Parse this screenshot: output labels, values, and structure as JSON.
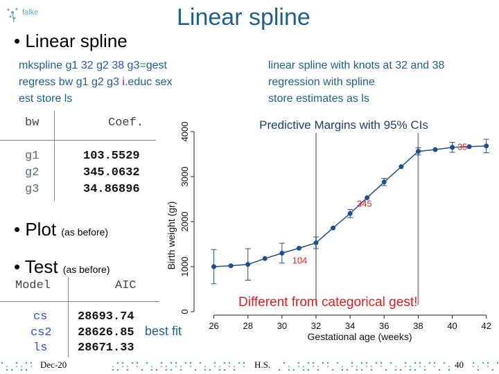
{
  "logo": {
    "text": "falke"
  },
  "slide_title": {
    "bold": "Linear",
    "light": " spline"
  },
  "bullets": {
    "first": "• Linear spline",
    "plot": "• Plot",
    "plot_note": "(as before)",
    "test": "• Test",
    "test_note": "(as before)"
  },
  "commands": {
    "line1_a": "mkspline g1 ",
    "line1_b": "32",
    "line1_c": " g2 ",
    "line1_d": "38",
    "line1_e": " g3",
    "line1_f": "=",
    "line1_g": "gest",
    "line2_a": "regress bw   g1 g2 g3 ",
    "line2_b": "i.",
    "line2_c": "educ sex",
    "line3": "est store ls"
  },
  "descriptions": {
    "line1": "linear spline with knots at 32 and 38",
    "line2": "regression with spline",
    "line3": "store estimates as ls"
  },
  "coef_table": {
    "col1": "bw",
    "col2": "Coef.",
    "rows": [
      {
        "label": "g1",
        "value": "103.5529"
      },
      {
        "label": "g2",
        "value": "345.0632"
      },
      {
        "label": "g3",
        "value": "34.86896"
      }
    ]
  },
  "aic_table": {
    "col1": "Model",
    "col2": "AIC",
    "rows": [
      {
        "label": "cs",
        "value": "28693.74"
      },
      {
        "label": "cs2",
        "value": "28626.85"
      },
      {
        "label": "ls",
        "value": "28671.33"
      }
    ]
  },
  "best_fit_label": "best fit",
  "chart_data": {
    "type": "line",
    "title": "Predictive Margins with 95% CIs",
    "xlabel": "Gestational age (weeks)",
    "ylabel": "Birth weight (gr)",
    "xlim": [
      25,
      42.5
    ],
    "ylim": [
      0,
      4000
    ],
    "xticks": [
      26,
      28,
      30,
      32,
      34,
      36,
      38,
      40,
      42
    ],
    "yticks": [
      0,
      1000,
      2000,
      3000,
      4000
    ],
    "knots": [
      32,
      38
    ],
    "x": [
      26,
      28,
      30,
      32,
      34,
      36,
      38,
      40,
      42
    ],
    "mid_x": [
      27,
      29,
      31,
      33,
      35,
      37,
      39,
      41
    ],
    "y": [
      1000,
      1050,
      1300,
      1530,
      2180,
      2880,
      3560,
      3650,
      3680
    ],
    "mid_y": [
      1020,
      1180,
      1410,
      1860,
      2530,
      3220,
      3600,
      3665
    ],
    "ci_lo": [
      620,
      700,
      1080,
      1400,
      2090,
      2800,
      3480,
      3540,
      3530
    ],
    "ci_hi": [
      1380,
      1400,
      1520,
      1660,
      2270,
      2960,
      3640,
      3760,
      3830
    ],
    "annotations": [
      {
        "text": "104",
        "x": 30.6,
        "y": 1070
      },
      {
        "text": "345",
        "x": 34.4,
        "y": 2330
      },
      {
        "text": "35",
        "x": 40.3,
        "y": 3590
      }
    ],
    "note": "Different from categorical gest!",
    "line_color": "#1f4f8b",
    "annotation_color": "#e02020",
    "grid": false
  },
  "footer": {
    "date": "Dec-20",
    "author": "H.S.",
    "page": "40"
  }
}
